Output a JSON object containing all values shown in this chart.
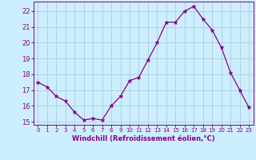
{
  "x": [
    0,
    1,
    2,
    3,
    4,
    5,
    6,
    7,
    8,
    9,
    10,
    11,
    12,
    13,
    14,
    15,
    16,
    17,
    18,
    19,
    20,
    21,
    22,
    23
  ],
  "y": [
    17.5,
    17.2,
    16.6,
    16.3,
    15.6,
    15.1,
    15.2,
    15.1,
    16.0,
    16.6,
    17.6,
    17.8,
    18.9,
    20.0,
    21.3,
    21.3,
    22.0,
    22.3,
    21.5,
    20.8,
    19.7,
    18.1,
    17.0,
    15.9
  ],
  "line_color": "#880088",
  "marker": "*",
  "marker_size": 3.5,
  "bg_color": "#cceeff",
  "grid_color": "#aaccdd",
  "tick_color": "#880088",
  "label_color": "#880088",
  "xlabel": "Windchill (Refroidissement éolien,°C)",
  "ylim": [
    14.8,
    22.6
  ],
  "xlim": [
    -0.5,
    23.5
  ],
  "yticks": [
    15,
    16,
    17,
    18,
    19,
    20,
    21,
    22
  ],
  "xticks": [
    0,
    1,
    2,
    3,
    4,
    5,
    6,
    7,
    8,
    9,
    10,
    11,
    12,
    13,
    14,
    15,
    16,
    17,
    18,
    19,
    20,
    21,
    22,
    23
  ]
}
